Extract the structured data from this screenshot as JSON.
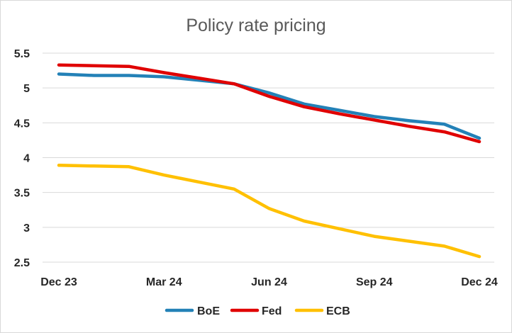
{
  "chart_data": {
    "type": "line",
    "title": "Policy rate pricing",
    "xlabel": "",
    "ylabel": "",
    "x_tick_labels": [
      "Dec 23",
      "Mar 24",
      "Jun 24",
      "Sep 24",
      "Dec 24"
    ],
    "ylim": [
      2.5,
      5.5
    ],
    "y_ticks": [
      "2.5",
      "3",
      "3.5",
      "4",
      "4.5",
      "5",
      "5.5"
    ],
    "grid": true,
    "legend_position": "bottom",
    "series": [
      {
        "name": "BoE",
        "color": "#2381b7",
        "points": [
          {
            "x": "Dec 23",
            "y": 5.2
          },
          {
            "x": "Jan 24",
            "y": 5.18
          },
          {
            "x": "Feb 24",
            "y": 5.18
          },
          {
            "x": "Mar 24",
            "y": 5.16
          },
          {
            "x": "Apr 24",
            "y": 5.11
          },
          {
            "x": "May 24",
            "y": 5.06
          },
          {
            "x": "Jun 24",
            "y": 4.93
          },
          {
            "x": "Jul 24",
            "y": 4.77
          },
          {
            "x": "Aug 24",
            "y": 4.68
          },
          {
            "x": "Sep 24",
            "y": 4.59
          },
          {
            "x": "Oct 24",
            "y": 4.53
          },
          {
            "x": "Nov 24",
            "y": 4.48
          },
          {
            "x": "Dec 24",
            "y": 4.28
          }
        ]
      },
      {
        "name": "Fed",
        "color": "#e00000",
        "points": [
          {
            "x": "Dec 23",
            "y": 5.33
          },
          {
            "x": "Jan 24",
            "y": 5.32
          },
          {
            "x": "Feb 24",
            "y": 5.31
          },
          {
            "x": "Mar 24",
            "y": 5.22
          },
          {
            "x": "Apr 24",
            "y": 5.14
          },
          {
            "x": "May 24",
            "y": 5.06
          },
          {
            "x": "Jun 24",
            "y": 4.88
          },
          {
            "x": "Jul 24",
            "y": 4.73
          },
          {
            "x": "Aug 24",
            "y": 4.63
          },
          {
            "x": "Sep 24",
            "y": 4.54
          },
          {
            "x": "Oct 24",
            "y": 4.45
          },
          {
            "x": "Nov 24",
            "y": 4.37
          },
          {
            "x": "Dec 24",
            "y": 4.23
          }
        ]
      },
      {
        "name": "ECB",
        "color": "#ffc000",
        "points": [
          {
            "x": "Dec 23",
            "y": 3.89
          },
          {
            "x": "Jan 24",
            "y": 3.88
          },
          {
            "x": "Feb 24",
            "y": 3.87
          },
          {
            "x": "Mar 24",
            "y": 3.75
          },
          {
            "x": "Apr 24",
            "y": 3.65
          },
          {
            "x": "May 24",
            "y": 3.55
          },
          {
            "x": "Jun 24",
            "y": 3.27
          },
          {
            "x": "Jul 24",
            "y": 3.09
          },
          {
            "x": "Aug 24",
            "y": 2.98
          },
          {
            "x": "Sep 24",
            "y": 2.87
          },
          {
            "x": "Oct 24",
            "y": 2.8
          },
          {
            "x": "Nov 24",
            "y": 2.73
          },
          {
            "x": "Dec 24",
            "y": 2.58
          }
        ]
      }
    ]
  }
}
